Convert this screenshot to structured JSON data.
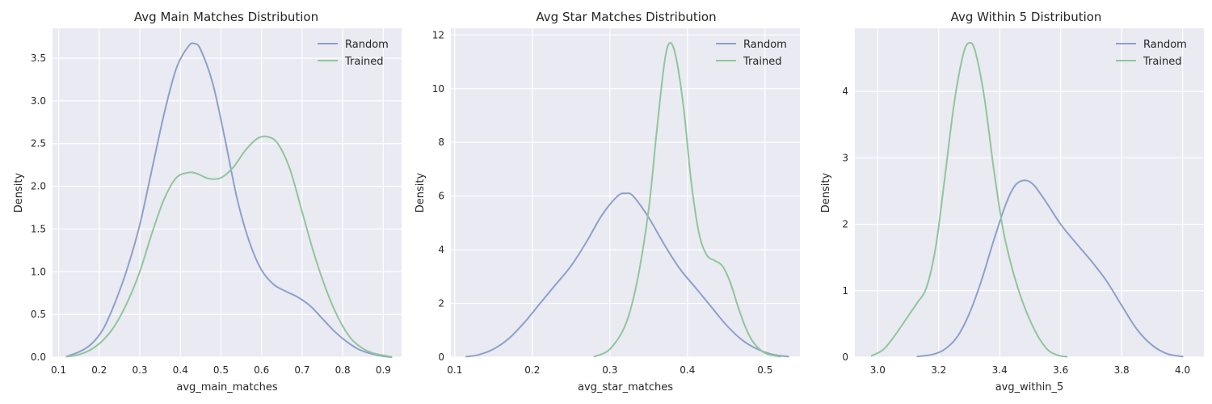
{
  "chart_data": [
    {
      "type": "line",
      "title": "Avg Main Matches Distribution",
      "xlabel": "avg_main_matches",
      "ylabel": "Density",
      "xlim": [
        0.085,
        0.945
      ],
      "ylim": [
        0,
        3.85
      ],
      "xticks": [
        0.1,
        0.2,
        0.3,
        0.4,
        0.5,
        0.6,
        0.7,
        0.8,
        0.9
      ],
      "xtick_labels": [
        "0.1",
        "0.2",
        "0.3",
        "0.4",
        "0.5",
        "0.6",
        "0.7",
        "0.8",
        "0.9"
      ],
      "yticks": [
        0,
        0.5,
        1.0,
        1.5,
        2.0,
        2.5,
        3.0,
        3.5
      ],
      "ytick_labels": [
        "0.0",
        "0.5",
        "1.0",
        "1.5",
        "2.0",
        "2.5",
        "3.0",
        "3.5"
      ],
      "grid": true,
      "legend": "top-right",
      "series": [
        {
          "name": "Random",
          "color": "#8da0cb",
          "x": [
            0.12,
            0.15,
            0.18,
            0.21,
            0.24,
            0.27,
            0.3,
            0.33,
            0.36,
            0.39,
            0.42,
            0.435,
            0.45,
            0.48,
            0.51,
            0.54,
            0.57,
            0.6,
            0.63,
            0.66,
            0.69,
            0.72,
            0.75,
            0.78,
            0.81,
            0.84,
            0.87,
            0.9,
            0.92
          ],
          "y": [
            0.01,
            0.06,
            0.15,
            0.33,
            0.65,
            1.05,
            1.55,
            2.2,
            2.85,
            3.38,
            3.64,
            3.67,
            3.6,
            3.2,
            2.55,
            1.85,
            1.35,
            1.02,
            0.85,
            0.77,
            0.7,
            0.6,
            0.45,
            0.3,
            0.18,
            0.09,
            0.04,
            0.01,
            0.0
          ]
        },
        {
          "name": "Trained",
          "color": "#8fc69a",
          "x": [
            0.12,
            0.15,
            0.18,
            0.21,
            0.24,
            0.27,
            0.3,
            0.33,
            0.36,
            0.39,
            0.42,
            0.44,
            0.47,
            0.5,
            0.53,
            0.56,
            0.59,
            0.615,
            0.64,
            0.67,
            0.7,
            0.73,
            0.76,
            0.79,
            0.82,
            0.85,
            0.88,
            0.92
          ],
          "y": [
            0.005,
            0.03,
            0.09,
            0.2,
            0.38,
            0.65,
            1.0,
            1.45,
            1.85,
            2.1,
            2.16,
            2.15,
            2.09,
            2.1,
            2.22,
            2.42,
            2.56,
            2.58,
            2.5,
            2.2,
            1.7,
            1.2,
            0.78,
            0.45,
            0.22,
            0.1,
            0.04,
            0.005
          ]
        }
      ]
    },
    {
      "type": "line",
      "title": "Avg Star Matches Distribution",
      "xlabel": "avg_star_matches",
      "ylabel": "Density",
      "xlim": [
        0.095,
        0.545
      ],
      "ylim": [
        0,
        12.25
      ],
      "xticks": [
        0.1,
        0.2,
        0.3,
        0.4,
        0.5
      ],
      "xtick_labels": [
        "0.1",
        "0.2",
        "0.3",
        "0.4",
        "0.5"
      ],
      "yticks": [
        0,
        2,
        4,
        6,
        8,
        10,
        12
      ],
      "ytick_labels": [
        "0",
        "2",
        "4",
        "6",
        "8",
        "10",
        "12"
      ],
      "grid": true,
      "legend": "top-right",
      "series": [
        {
          "name": "Random",
          "color": "#8da0cb",
          "x": [
            0.115,
            0.13,
            0.15,
            0.17,
            0.19,
            0.21,
            0.23,
            0.25,
            0.27,
            0.29,
            0.31,
            0.32,
            0.33,
            0.35,
            0.37,
            0.39,
            0.41,
            0.43,
            0.45,
            0.47,
            0.49,
            0.51,
            0.53
          ],
          "y": [
            0.02,
            0.08,
            0.3,
            0.7,
            1.3,
            2.0,
            2.7,
            3.4,
            4.3,
            5.3,
            6.0,
            6.1,
            6.0,
            5.2,
            4.2,
            3.3,
            2.6,
            1.9,
            1.2,
            0.65,
            0.3,
            0.1,
            0.02
          ]
        },
        {
          "name": "Trained",
          "color": "#8fc69a",
          "x": [
            0.28,
            0.3,
            0.32,
            0.335,
            0.35,
            0.36,
            0.37,
            0.377,
            0.385,
            0.395,
            0.405,
            0.415,
            0.425,
            0.435,
            0.445,
            0.455,
            0.465,
            0.475,
            0.485,
            0.5,
            0.52
          ],
          "y": [
            0.02,
            0.3,
            1.2,
            2.8,
            5.5,
            8.3,
            10.9,
            11.7,
            11.2,
            9.3,
            6.5,
            4.6,
            3.8,
            3.6,
            3.4,
            2.8,
            1.9,
            1.1,
            0.55,
            0.15,
            0.02
          ]
        }
      ]
    },
    {
      "type": "line",
      "title": "Avg Within 5 Distribution",
      "xlabel": "avg_within_5",
      "ylabel": "Density",
      "xlim": [
        2.925,
        4.07
      ],
      "ylim": [
        0,
        4.95
      ],
      "xticks": [
        3.0,
        3.2,
        3.4,
        3.6,
        3.8,
        4.0
      ],
      "xtick_labels": [
        "3.0",
        "3.2",
        "3.4",
        "3.6",
        "3.8",
        "4.0"
      ],
      "yticks": [
        0,
        1,
        2,
        3,
        4
      ],
      "ytick_labels": [
        "0",
        "1",
        "2",
        "3",
        "4"
      ],
      "grid": true,
      "legend": "top-right",
      "series": [
        {
          "name": "Random",
          "color": "#8da0cb",
          "x": [
            3.13,
            3.18,
            3.22,
            3.26,
            3.3,
            3.34,
            3.38,
            3.42,
            3.45,
            3.48,
            3.51,
            3.55,
            3.6,
            3.65,
            3.7,
            3.75,
            3.8,
            3.85,
            3.9,
            3.95,
            4.0
          ],
          "y": [
            0.01,
            0.04,
            0.12,
            0.3,
            0.65,
            1.15,
            1.75,
            2.3,
            2.58,
            2.66,
            2.6,
            2.35,
            2.0,
            1.72,
            1.45,
            1.15,
            0.78,
            0.42,
            0.18,
            0.05,
            0.01
          ]
        },
        {
          "name": "Trained",
          "color": "#8fc69a",
          "x": [
            2.98,
            3.02,
            3.06,
            3.1,
            3.13,
            3.16,
            3.19,
            3.22,
            3.25,
            3.28,
            3.3,
            3.32,
            3.35,
            3.38,
            3.41,
            3.44,
            3.47,
            3.5,
            3.53,
            3.56,
            3.59,
            3.62
          ],
          "y": [
            0.02,
            0.12,
            0.35,
            0.62,
            0.82,
            1.05,
            1.65,
            2.7,
            3.8,
            4.55,
            4.73,
            4.6,
            3.9,
            2.85,
            1.95,
            1.35,
            0.9,
            0.55,
            0.28,
            0.1,
            0.03,
            0.005
          ]
        }
      ]
    }
  ]
}
